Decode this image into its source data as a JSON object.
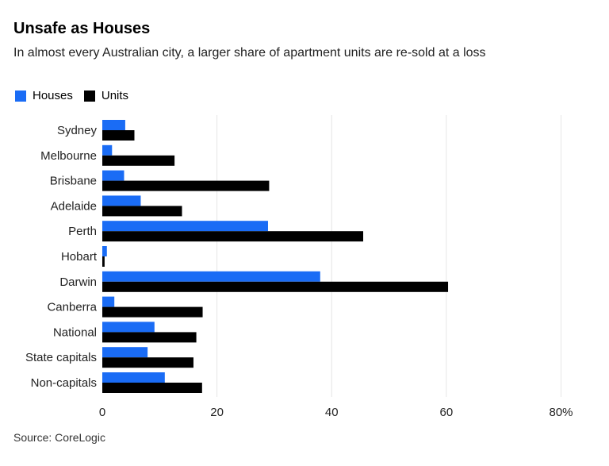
{
  "chart_data": {
    "type": "bar",
    "orientation": "horizontal",
    "title": "Unsafe as Houses",
    "subtitle": "In almost every Australian city, a larger share of apartment units are re-sold at a loss",
    "categories": [
      "Sydney",
      "Melbourne",
      "Brisbane",
      "Adelaide",
      "Perth",
      "Hobart",
      "Darwin",
      "Canberra",
      "National",
      "State capitals",
      "Non-capitals"
    ],
    "series": [
      {
        "name": "Houses",
        "color": "#1a6cf5",
        "values": [
          4.0,
          1.7,
          3.8,
          6.7,
          28.9,
          0.8,
          38.0,
          2.1,
          9.1,
          7.9,
          10.9
        ]
      },
      {
        "name": "Units",
        "color": "#000000",
        "values": [
          5.6,
          12.6,
          29.1,
          13.9,
          45.5,
          0.4,
          60.3,
          17.5,
          16.4,
          15.9,
          17.4
        ]
      }
    ],
    "xlim": [
      0,
      80
    ],
    "xticks": [
      0,
      20,
      40,
      60,
      80
    ],
    "xtick_labels": [
      "0",
      "20",
      "40",
      "60",
      "80%"
    ],
    "grid": true,
    "legend_position": "top-left",
    "source": "Source: CoreLogic"
  }
}
